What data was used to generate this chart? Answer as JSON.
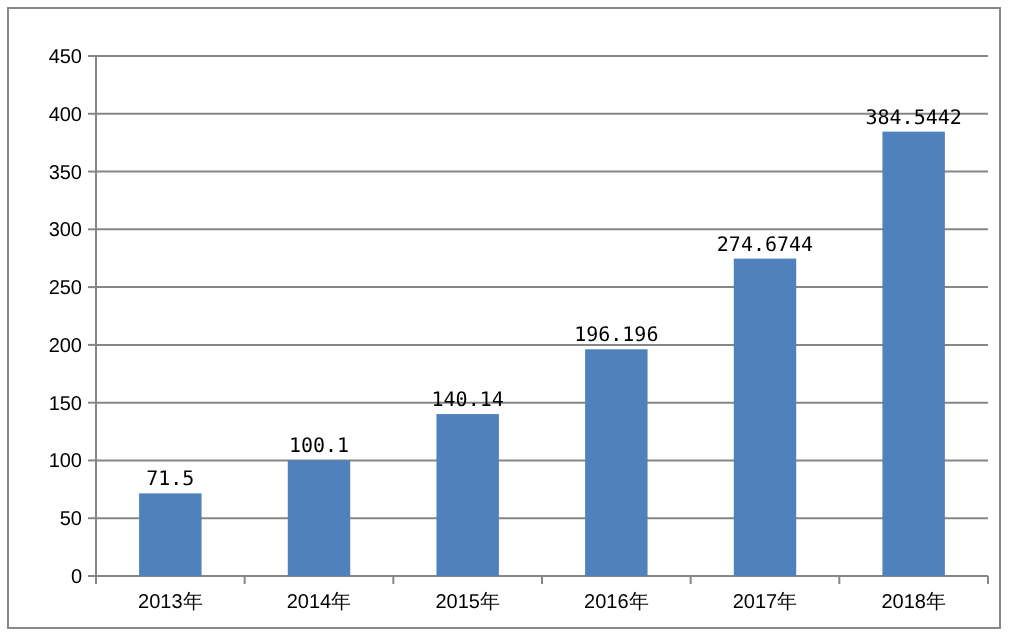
{
  "chart_data": {
    "type": "bar",
    "categories": [
      "2013年",
      "2014年",
      "2015年",
      "2016年",
      "2017年",
      "2018年"
    ],
    "values": [
      71.5,
      100.1,
      140.14,
      196.196,
      274.6744,
      384.5442
    ],
    "color": "#4f81bd",
    "ylim": [
      0,
      450
    ],
    "yticks": [
      0,
      50,
      100,
      150,
      200,
      250,
      300,
      350,
      400,
      450
    ],
    "grid": "y",
    "data_labels": true
  }
}
